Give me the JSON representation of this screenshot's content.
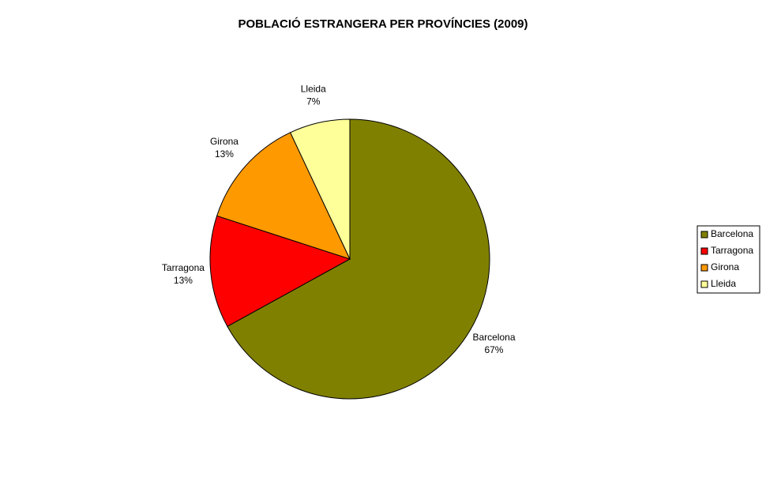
{
  "chart_data": {
    "type": "pie",
    "title": "POBLACIÓ ESTRANGERA PER PROVÍNCIES (2009)",
    "categories": [
      "Barcelona",
      "Tarragona",
      "Girona",
      "Lleida"
    ],
    "values": [
      67,
      13,
      13,
      7
    ],
    "value_labels": [
      "67%",
      "13%",
      "13%",
      "7%"
    ],
    "colors": [
      "#808000",
      "#ff0000",
      "#ff9900",
      "#ffff99"
    ],
    "legend": "right"
  }
}
